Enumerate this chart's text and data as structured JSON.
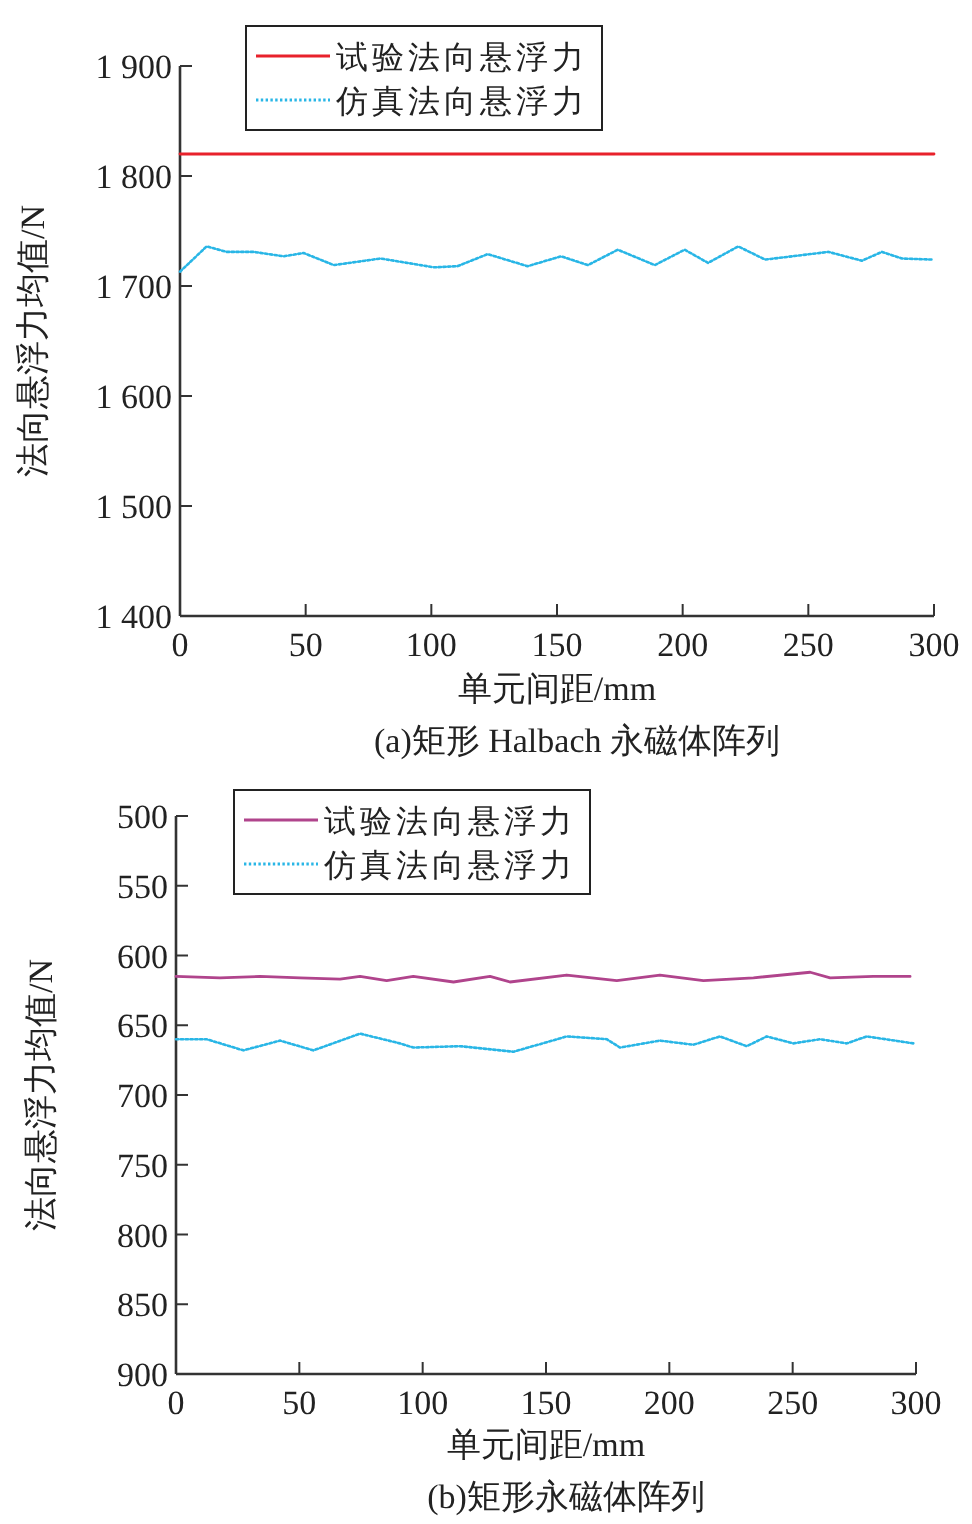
{
  "chart_data": [
    {
      "type": "line",
      "title": "(a)矩形 Halbach 永磁体阵列",
      "xlabel": "单元间距/mm",
      "ylabel": "法向悬浮力均值/N",
      "xlim": [
        0,
        300
      ],
      "xticks": [
        0,
        50,
        100,
        150,
        200,
        250,
        300
      ],
      "ylim": [
        1400,
        1900
      ],
      "yticks": [
        {
          "value": 1400,
          "label": "1 400"
        },
        {
          "value": 1500,
          "label": "1 500"
        },
        {
          "value": 1600,
          "label": "1 600"
        },
        {
          "value": 1700,
          "label": "1 700"
        },
        {
          "value": 1800,
          "label": "1 800"
        },
        {
          "value": 1900,
          "label": "1 900"
        }
      ],
      "legend": "top left",
      "series": [
        {
          "name": "试验法向悬浮力",
          "color": "#e8212b",
          "line_style": "solid",
          "x": [
            0,
            300
          ],
          "values": [
            1820,
            1820
          ]
        },
        {
          "name": "仿真法向悬浮力",
          "color": "#29b6e6",
          "line_style": "dotted",
          "x": [
            0,
            10.6,
            18.6,
            29.3,
            41.2,
            49.2,
            61.2,
            79.8,
            101,
            110.4,
            122.4,
            138.3,
            151.6,
            162.3,
            174.2,
            188.9,
            200.8,
            210.1,
            222.1,
            232.8,
            258,
            271.3,
            279.3,
            287.3,
            299.8
          ],
          "values": [
            1713,
            1736,
            1731,
            1731,
            1727,
            1730,
            1719,
            1725,
            1717,
            1718,
            1729,
            1718,
            1727,
            1719,
            1733,
            1719,
            1733,
            1721,
            1736,
            1724,
            1731,
            1723,
            1731,
            1725,
            1724
          ]
        }
      ]
    },
    {
      "type": "line",
      "title": "(b)矩形永磁体阵列",
      "xlabel": "单元间距/mm",
      "ylabel": "法向悬浮力均值/N",
      "xlim": [
        0,
        300
      ],
      "xticks": [
        0,
        50,
        100,
        150,
        200,
        250,
        300
      ],
      "ylim": [
        900,
        500
      ],
      "yticks": [
        500,
        550,
        600,
        650,
        700,
        750,
        800,
        850,
        900
      ],
      "legend": "top left",
      "series": [
        {
          "name": "试验法向悬浮力",
          "color": "#b0448c",
          "line_style": "solid",
          "x": [
            0,
            17.8,
            34,
            50.3,
            66.5,
            74.6,
            85.4,
            96.2,
            112.5,
            127.3,
            135.4,
            158.4,
            178.7,
            196.2,
            213.8,
            234.1,
            257.1,
            265.2,
            282.7,
            297.6
          ],
          "values": [
            615,
            616,
            615,
            616,
            617,
            615,
            618,
            615,
            619,
            615,
            619,
            614,
            618,
            614,
            618,
            616,
            612,
            616,
            615,
            615
          ]
        },
        {
          "name": "仿真法向悬浮力",
          "color": "#29b6e6",
          "line_style": "dotted",
          "x": [
            0,
            12.4,
            27.3,
            42.2,
            55.7,
            74.6,
            90.8,
            96.2,
            115.1,
            136.8,
            158.4,
            174.6,
            180,
            196.2,
            209.7,
            220.5,
            231.4,
            239.5,
            250.3,
            261.1,
            271.9,
            280,
            298.9
          ],
          "values": [
            660,
            660,
            668,
            661,
            668,
            656,
            663,
            666,
            665,
            669,
            658,
            660,
            666,
            661,
            664,
            658,
            665,
            658,
            663,
            660,
            663,
            658,
            663
          ]
        }
      ]
    }
  ]
}
